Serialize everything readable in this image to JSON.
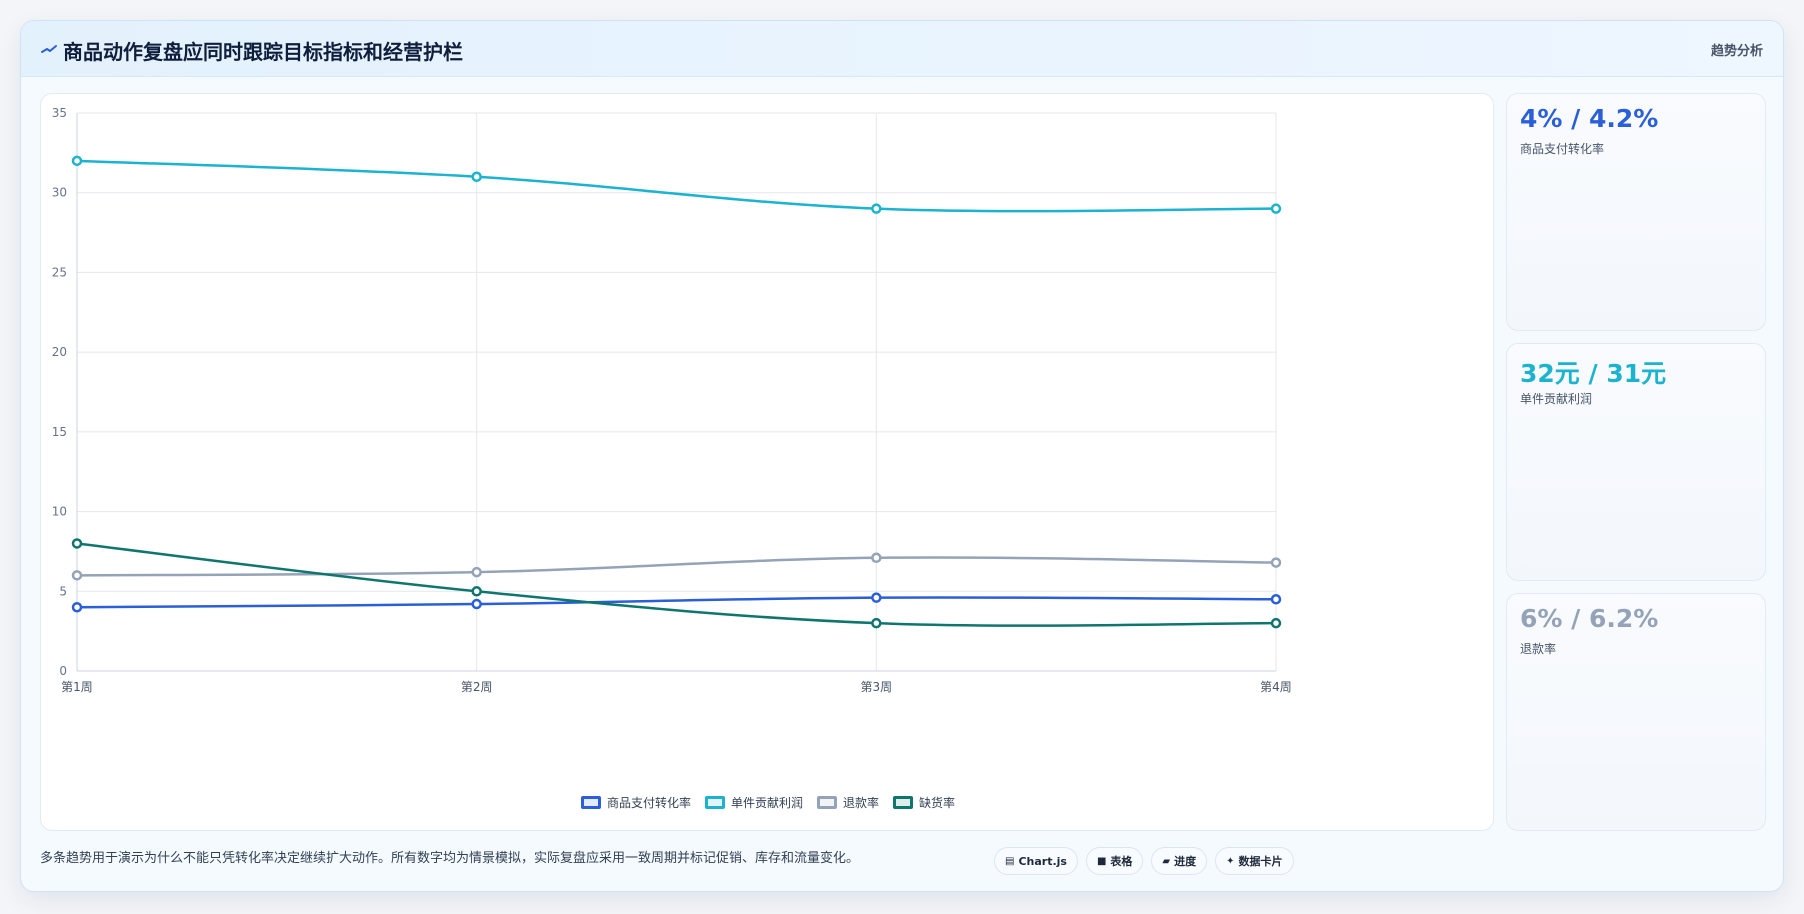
{
  "header": {
    "title": "商品动作复盘应同时跟踪目标指标和经营护栏",
    "tag": "趋势分析"
  },
  "chart_data": {
    "type": "line",
    "categories": [
      "第1周",
      "第2周",
      "第3周",
      "第4周"
    ],
    "ylim": [
      0,
      35
    ],
    "yticks": [
      0,
      5,
      10,
      15,
      20,
      25,
      30,
      35
    ],
    "grid": true,
    "legend_position": "bottom",
    "series": [
      {
        "name": "商品支付转化率",
        "color": "#2b5fd9",
        "values": [
          4,
          4.2,
          4.6,
          4.5
        ]
      },
      {
        "name": "单件贡献利润",
        "color": "#1bb3cf",
        "values": [
          32,
          31,
          29,
          29
        ]
      },
      {
        "name": "退款率",
        "color": "#94a3b8",
        "values": [
          6,
          6.2,
          7.1,
          6.8
        ]
      },
      {
        "name": "缺货率",
        "color": "#0f766e",
        "values": [
          8,
          5,
          3,
          3
        ]
      }
    ]
  },
  "cards": [
    {
      "value": "4% / 4.2%",
      "label": "商品支付转化率",
      "color": "#2b5fd9"
    },
    {
      "value": "32元 / 31元",
      "label": "单件贡献利润",
      "color": "#1bb3cf"
    },
    {
      "value": "6% / 6.2%",
      "label": "退款率",
      "color": "#94a3b8"
    }
  ],
  "footer": {
    "note": "多条趋势用于演示为什么不能只凭转化率决定继续扩大动作。所有数字均为情景模拟，实际复盘应采用一致周期并标记促销、库存和流量变化。"
  },
  "chips": [
    {
      "glyph": "▤",
      "label": "Chart.js",
      "icon": "chart-icon"
    },
    {
      "glyph": "■",
      "label": "表格",
      "icon": "table-icon"
    },
    {
      "glyph": "▰",
      "label": "进度",
      "icon": "progress-icon"
    },
    {
      "glyph": "✦",
      "label": "数据卡片",
      "icon": "sparkle-icon"
    }
  ]
}
